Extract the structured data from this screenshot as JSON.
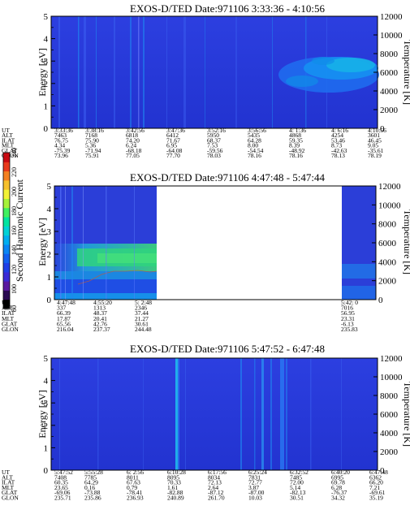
{
  "figure": {
    "colorbar": {
      "label": "Second Harmonic Current",
      "ticks": [
        "80",
        "100",
        "120",
        "140",
        "160",
        "180",
        "200",
        "220",
        "240"
      ],
      "colors": [
        "#000000",
        "#2a0a52",
        "#5a1aa0",
        "#3b2bd6",
        "#1f3fe6",
        "#1260f0",
        "#0a86f4",
        "#00aef0",
        "#00d2d6",
        "#00e4a0",
        "#40f060",
        "#a6f23a",
        "#f2f236",
        "#f6c02c",
        "#f48022",
        "#e83a1c",
        "#c80a12"
      ]
    },
    "orbit_labels": [
      "UT",
      "ALT",
      "ILAT",
      "MLT",
      "GLAT",
      "GLON"
    ]
  },
  "chart_data": [
    {
      "type": "heatmap",
      "title": "EXOS-D/TED  Date:971106  3:33:36 - 4:10:56",
      "ylabel": "Energy [eV]",
      "y2label": "Temperature [K]",
      "ylim": [
        0,
        5
      ],
      "y2lim": [
        0,
        12000
      ],
      "yticks": [
        "0",
        "1",
        "2",
        "3",
        "4",
        "5"
      ],
      "y2ticks": [
        "0",
        "2000",
        "4000",
        "6000",
        "8000",
        "10000",
        "12000"
      ],
      "columns": [
        {
          "UT": "3:33:36",
          "ALT": "7463",
          "ILAT": "76.75",
          "MLT": "4.34",
          "GLAT": "-75.39",
          "GLON": "73.96"
        },
        {
          "UT": "3:38:16",
          "ALT": "7168",
          "ILAT": "75.90",
          "MLT": "5.36",
          "GLAT": "-71.94",
          "GLON": "75.91"
        },
        {
          "UT": "3:42:56",
          "ALT": "6818",
          "ILAT": "74.20",
          "MLT": "6.24",
          "GLAT": "-68.18",
          "GLON": "77.05"
        },
        {
          "UT": "3:47:36",
          "ALT": "6412",
          "ILAT": "71.67",
          "MLT": "6.95",
          "GLAT": "-64.08",
          "GLON": "77.70"
        },
        {
          "UT": "3:52:16",
          "ALT": "5950",
          "ILAT": "68.37",
          "MLT": "7.53",
          "GLAT": "-59.56",
          "GLON": "78.03"
        },
        {
          "UT": "3:56:56",
          "ALT": "5435",
          "ILAT": "64.28",
          "MLT": "8.00",
          "GLAT": "-54.54",
          "GLON": "78.16"
        },
        {
          "UT": "4: 1:36",
          "ALT": "4868",
          "ILAT": "59.35",
          "MLT": "8.39",
          "GLAT": "-48.92",
          "GLON": "78.16"
        },
        {
          "UT": "4: 6:16",
          "ALT": "4254",
          "ILAT": "53.46",
          "MLT": "8.73",
          "GLAT": "-42.63",
          "GLON": "78.13"
        },
        {
          "UT": "4:10:56",
          "ALT": "3601",
          "ILAT": "46.45",
          "MLT": "9.05",
          "GLAT": "-35.61",
          "GLON": "78.19"
        }
      ]
    },
    {
      "type": "heatmap",
      "title": "EXOS-D/TED  Date:971106  4:47:48 - 5:47:44",
      "ylabel": "Energy [eV]",
      "y2label": "Temperature [K]",
      "ylim": [
        0,
        5
      ],
      "y2lim": [
        0,
        12000
      ],
      "yticks": [
        "0",
        "1",
        "2",
        "3",
        "4",
        "5"
      ],
      "y2ticks": [
        "0",
        "2000",
        "4000",
        "6000",
        "8000",
        "10000",
        "12000"
      ],
      "columns": [
        {
          "UT": "4:47:48",
          "ALT": "337",
          "ILAT": "66.39",
          "MLT": "17.87",
          "GLAT": "65.56",
          "GLON": "216.04"
        },
        {
          "UT": "4:55:20",
          "ALT": "1313",
          "ILAT": "48.37",
          "MLT": "20.41",
          "GLAT": "42.76",
          "GLON": "237.37"
        },
        {
          "UT": "5: 2:48",
          "ALT": "2346",
          "ILAT": "37.44",
          "MLT": "21.27",
          "GLAT": "30.61",
          "GLON": "244.48"
        },
        {
          "UT": "5:42: 0",
          "ALT": "7016",
          "ILAT": "56.95",
          "MLT": "23.31",
          "GLAT": "-6.13",
          "GLON": "235.83"
        }
      ]
    },
    {
      "type": "heatmap",
      "title": "EXOS-D/TED  Date:971106  5:47:52 - 6:47:48",
      "ylabel": "Energy [eV]",
      "y2label": "Temperature [K]",
      "ylim": [
        0,
        5
      ],
      "y2lim": [
        0,
        12000
      ],
      "yticks": [
        "0",
        "1",
        "2",
        "3",
        "4",
        "5"
      ],
      "y2ticks": [
        "0",
        "2000",
        "4000",
        "6000",
        "8000",
        "10000",
        "12000"
      ],
      "columns": [
        {
          "UT": "5:47:52",
          "ALT": "7408",
          "ILAT": "60.35",
          "MLT": "23.65",
          "GLAT": "-69.06",
          "GLON": "235.71"
        },
        {
          "UT": "5:55:28",
          "ALT": "7785",
          "ILAT": "64.29",
          "MLT": "0.16",
          "GLAT": "-73.88",
          "GLON": "235.86"
        },
        {
          "UT": "6: 2:56",
          "ALT": "8011",
          "ILAT": "67.63",
          "MLT": "0.79",
          "GLAT": "-78.41",
          "GLON": "236.93"
        },
        {
          "UT": "6:10:28",
          "ALT": "8095",
          "ILAT": "70.33",
          "MLT": "1.61",
          "GLAT": "-82.88",
          "GLON": "240.89"
        },
        {
          "UT": "6:17:56",
          "ALT": "8034",
          "ILAT": "72.13",
          "MLT": "2.64",
          "GLAT": "-87.12",
          "GLON": "261.70"
        },
        {
          "UT": "6:25:24",
          "ALT": "7831",
          "ILAT": "72.77",
          "MLT": "3.87",
          "GLAT": "-87.00",
          "GLON": "10.03"
        },
        {
          "UT": "6:32:52",
          "ALT": "7485",
          "ILAT": "72.00",
          "MLT": "5.14",
          "GLAT": "-82.13",
          "GLON": "30.51"
        },
        {
          "UT": "6:40:20",
          "ALT": "6995",
          "ILAT": "69.78",
          "MLT": "6.28",
          "GLAT": "-76.37",
          "GLON": "34.32"
        },
        {
          "UT": "6:47:48",
          "ALT": "6362",
          "ILAT": "66.20",
          "MLT": "7.21",
          "GLAT": "-69.61",
          "GLON": "35.19"
        }
      ]
    }
  ]
}
